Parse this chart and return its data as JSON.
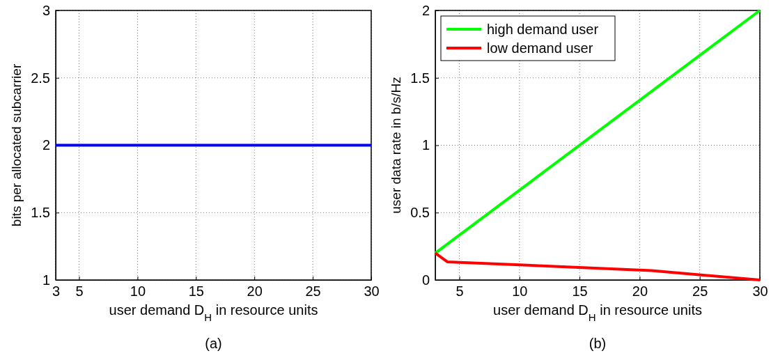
{
  "chart_data": [
    {
      "type": "line",
      "xlabel": "user demand D$_{H}$ in resource units",
      "ylabel": "bits per allocated subcarrier",
      "annotations": [
        "(a)"
      ],
      "xlim": [
        3,
        30
      ],
      "xticks": [
        3,
        5,
        10,
        15,
        20,
        25,
        30
      ],
      "ylim": [
        1,
        3
      ],
      "yticks": [
        1,
        1.5,
        2,
        2.5,
        3
      ],
      "grid": true,
      "legend": false,
      "series": [
        {
          "color": "#0000ff",
          "x": [
            3,
            30
          ],
          "values": [
            2,
            2
          ]
        }
      ]
    },
    {
      "type": "line",
      "xlabel": "user demand D$_{H}$ in resource units",
      "ylabel": "user data rate in b/s/Hz",
      "annotations": [
        "(b)"
      ],
      "xlim": [
        3,
        30
      ],
      "xticks": [
        5,
        10,
        15,
        20,
        25,
        30
      ],
      "ylim": [
        0,
        2
      ],
      "yticks": [
        0,
        0.5,
        1,
        1.5,
        2
      ],
      "grid": true,
      "legend": "top left",
      "series": [
        {
          "name": "high demand user",
          "color": "#00ff00",
          "x": [
            3,
            30
          ],
          "values": [
            0.2,
            2
          ]
        },
        {
          "name": "low demand user",
          "color": "#ff0000",
          "x": [
            3,
            4,
            21,
            30
          ],
          "values": [
            0.2,
            0.135,
            0.07,
            0
          ]
        }
      ]
    }
  ]
}
